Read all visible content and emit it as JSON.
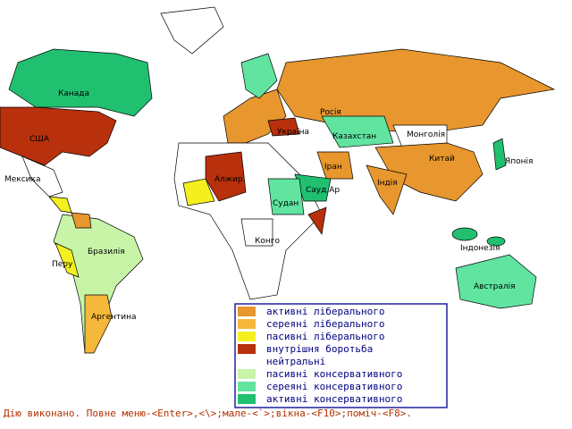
{
  "map": {
    "labels": [
      "Канада",
      "США",
      "Мексика",
      "Бразилія",
      "Перу",
      "Аргентина",
      "Росія",
      "Україна",
      "Казахстан",
      "Монголія",
      "Китай",
      "Японія",
      "Іран",
      "Індія",
      "Алжир",
      "Судан",
      "Сауд.Ар",
      "Конго",
      "Індонезія",
      "Австралія"
    ]
  },
  "legend": {
    "items": [
      {
        "label": "активні ліберального",
        "color": "#e8962e"
      },
      {
        "label": "сереяні ліберального",
        "color": "#f5b83a"
      },
      {
        "label": "пасивні ліберального",
        "color": "#f4f020"
      },
      {
        "label": "внутрішня боротьба",
        "color": "#b8300c"
      },
      {
        "label": "нейтральні",
        "color": "#ffffff"
      },
      {
        "label": "пасивні консервативного",
        "color": "#c8f4a8"
      },
      {
        "label": "сереяні консервативного",
        "color": "#60e4a0"
      },
      {
        "label": "активні консервативного",
        "color": "#20c070"
      }
    ]
  },
  "status": "Дію виконано. Повне меню-<Enter>,<\\>;мале-<`>;вікна-<F10>;поміч-<F8>."
}
